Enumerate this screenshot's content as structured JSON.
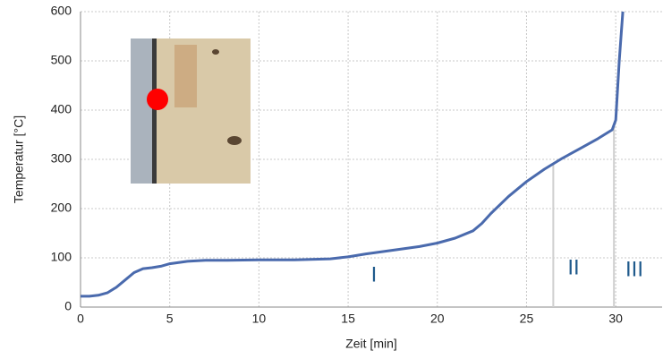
{
  "chart_data": {
    "type": "line",
    "xlabel": "Zeit [min]",
    "ylabel": "Temperatur [°C]",
    "xlim": [
      0,
      32.6
    ],
    "ylim": [
      0,
      600
    ],
    "xticks": [
      0,
      5,
      10,
      15,
      20,
      25,
      30
    ],
    "yticks": [
      0,
      100,
      200,
      300,
      400,
      500,
      600
    ],
    "grid": true,
    "series": [
      {
        "color": "#4a6aad",
        "x": [
          0,
          0.5,
          1,
          1.5,
          2,
          2.5,
          3,
          3.5,
          4,
          4.5,
          5,
          6,
          7,
          8,
          10,
          12,
          14,
          15,
          16,
          17,
          18,
          19,
          20,
          21,
          22,
          22.5,
          23,
          24,
          25,
          26,
          27,
          28,
          29,
          29.8,
          30,
          30.2,
          30.4
        ],
        "values": [
          22,
          22,
          24,
          29,
          40,
          55,
          70,
          78,
          80,
          83,
          88,
          93,
          95,
          95,
          96,
          96,
          98,
          102,
          108,
          113,
          118,
          123,
          130,
          140,
          155,
          170,
          190,
          225,
          255,
          280,
          302,
          322,
          342,
          360,
          380,
          500,
          600
        ]
      }
    ],
    "phase_boundaries": [
      26.5,
      29.9
    ],
    "phase_boundary_color": "#cfcfcf",
    "annotations": [
      "I",
      "II",
      "III"
    ]
  }
}
